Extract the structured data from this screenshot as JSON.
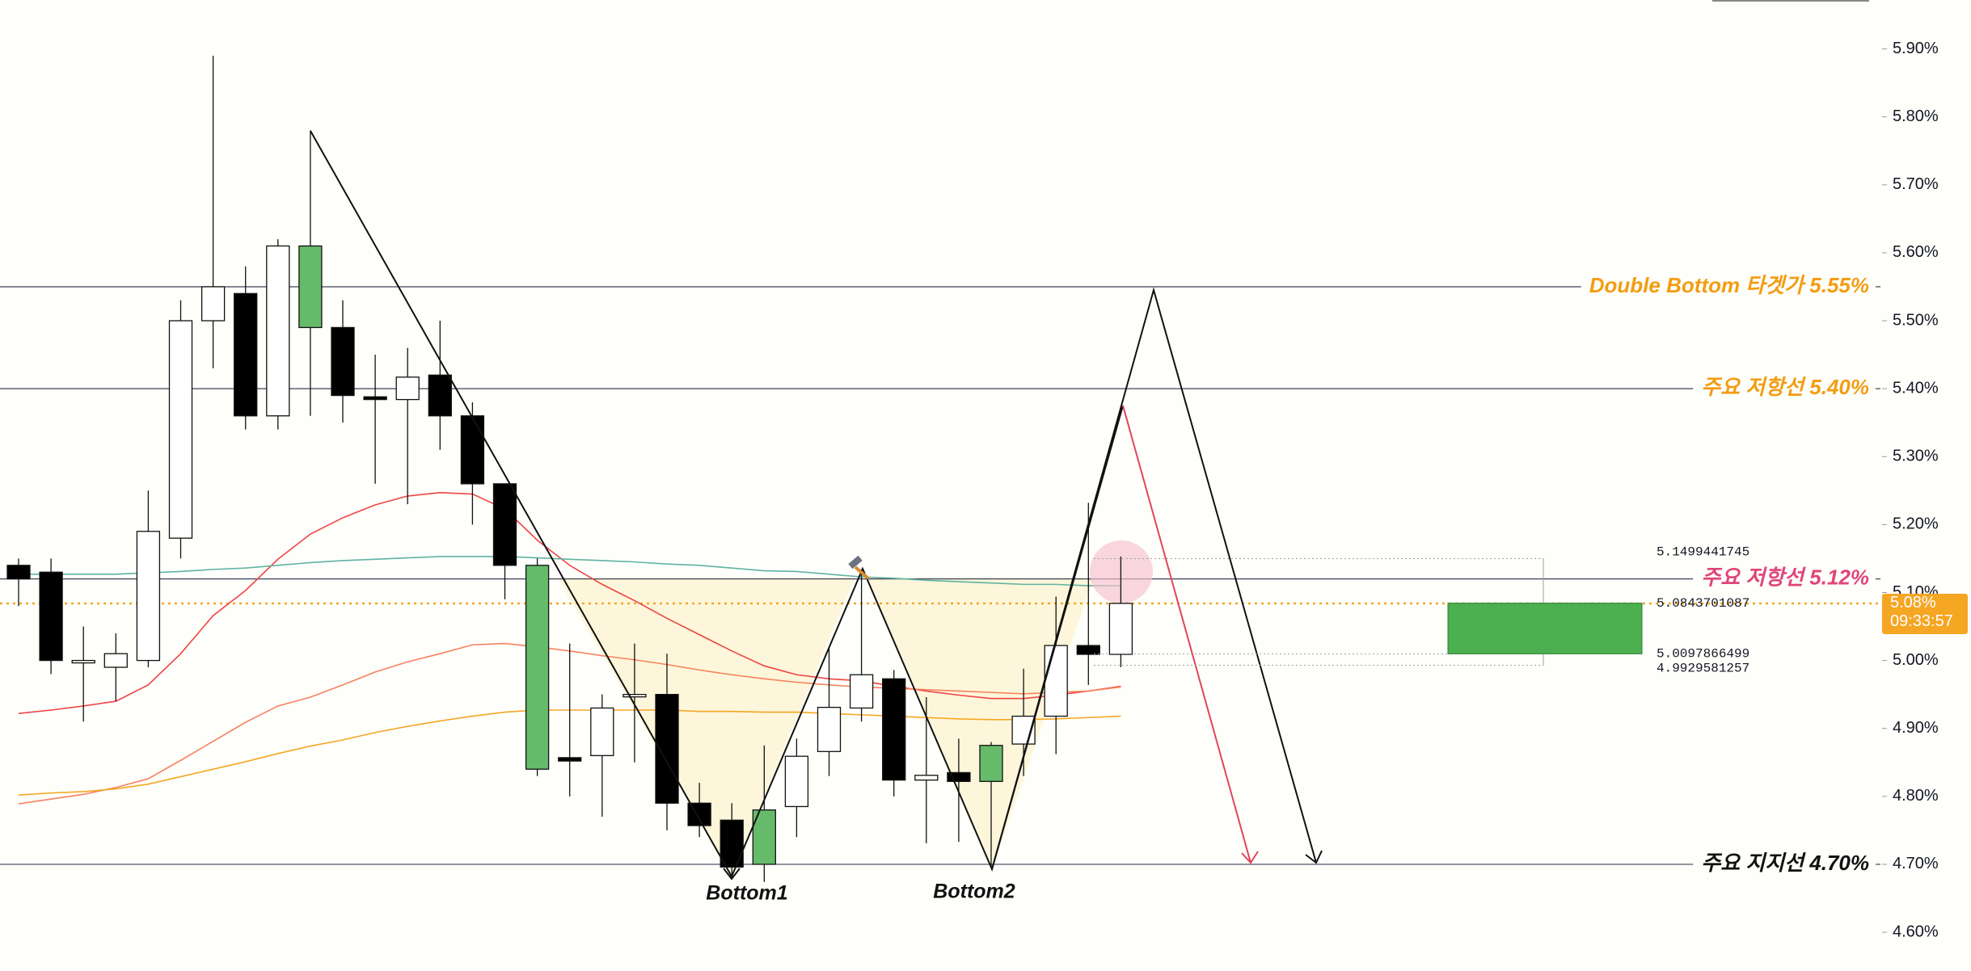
{
  "chart_data": {
    "type": "candlestick",
    "ylim": [
      4.543,
      5.972
    ],
    "yticks": [
      {
        "value": 5.9,
        "label": "5.90%"
      },
      {
        "value": 5.8,
        "label": "5.80%"
      },
      {
        "value": 5.7,
        "label": "5.70%"
      },
      {
        "value": 5.6,
        "label": "5.60%"
      },
      {
        "value": 5.5,
        "label": "5.50%"
      },
      {
        "value": 5.4,
        "label": "5.40%"
      },
      {
        "value": 5.3,
        "label": "5.30%"
      },
      {
        "value": 5.2,
        "label": "5.20%"
      },
      {
        "value": 5.1,
        "label": "5.10%"
      },
      {
        "value": 5.0,
        "label": "5.00%"
      },
      {
        "value": 4.9,
        "label": "4.90%"
      },
      {
        "value": 4.8,
        "label": "4.80%"
      },
      {
        "value": 4.7,
        "label": "4.70%"
      },
      {
        "value": 4.6,
        "label": "4.60%"
      }
    ],
    "open": [
      5.14,
      5.13,
      4.999,
      4.99,
      5.0,
      5.18,
      5.5,
      5.54,
      5.36,
      5.61,
      5.49,
      5.388,
      5.384,
      5.42,
      5.36,
      5.26,
      5.14,
      4.857,
      4.86,
      4.948,
      4.95,
      4.79,
      4.765,
      4.7,
      4.785,
      4.866,
      4.93,
      4.973,
      4.824,
      4.835,
      4.822,
      4.877,
      4.918,
      5.022,
      5.009
    ],
    "high": [
      5.15,
      5.15,
      5.05,
      5.04,
      5.25,
      5.53,
      5.89,
      5.58,
      5.62,
      5.78,
      5.53,
      5.45,
      5.46,
      5.5,
      5.38,
      5.26,
      5.15,
      5.025,
      4.95,
      5.025,
      5.01,
      4.82,
      4.79,
      4.875,
      4.885,
      5.02,
      5.134,
      4.986,
      4.946,
      4.885,
      4.88,
      4.988,
      5.094,
      5.232,
      5.153
    ],
    "low": [
      5.08,
      4.98,
      4.91,
      4.94,
      4.99,
      5.15,
      5.43,
      5.34,
      5.34,
      5.36,
      5.35,
      5.26,
      5.23,
      5.31,
      5.2,
      5.09,
      4.83,
      4.8,
      4.77,
      4.85,
      4.75,
      4.74,
      4.68,
      4.674,
      4.74,
      4.83,
      4.91,
      4.8,
      4.731,
      4.733,
      4.696,
      4.83,
      4.862,
      4.964,
      4.99
    ],
    "close": [
      5.12,
      5.0,
      5.0,
      5.01,
      5.19,
      5.5,
      5.55,
      5.36,
      5.61,
      5.49,
      5.39,
      5.384,
      5.417,
      5.36,
      5.26,
      5.14,
      4.84,
      4.852,
      4.93,
      4.95,
      4.79,
      4.757,
      4.696,
      4.78,
      4.859,
      4.931,
      4.979,
      4.824,
      4.831,
      4.822,
      4.875,
      4.918,
      5.022,
      5.009,
      5.084
    ],
    "colors": [
      "#000000",
      "#000000",
      "#ffffff",
      "#ffffff",
      "#ffffff",
      "#ffffff",
      "#ffffff",
      "#000000",
      "#ffffff",
      "#66bb6a",
      "#000000",
      "#000000",
      "#ffffff",
      "#000000",
      "#000000",
      "#000000",
      "#66bb6a",
      "#000000",
      "#ffffff",
      "#ffffff",
      "#000000",
      "#000000",
      "#000000",
      "#66bb6a",
      "#ffffff",
      "#ffffff",
      "#ffffff",
      "#000000",
      "#ffffff",
      "#000000",
      "#66bb6a",
      "#ffffff",
      "#ffffff",
      "#000000",
      "#ffffff"
    ],
    "moving_averages": [
      {
        "color": "#ef4444",
        "values": [
          4.922,
          4.927,
          4.933,
          4.94,
          4.964,
          5.01,
          5.066,
          5.103,
          5.149,
          5.186,
          5.21,
          5.229,
          5.242,
          5.247,
          5.245,
          5.223,
          5.177,
          5.14,
          5.112,
          5.088,
          5.062,
          5.038,
          5.014,
          4.992,
          4.979,
          4.973,
          4.97,
          4.962,
          4.955,
          4.949,
          4.944,
          4.944,
          4.949,
          4.955,
          4.962
        ]
      },
      {
        "color": "#5fb3a3",
        "values": [
          5.127,
          5.127,
          5.127,
          5.127,
          5.129,
          5.131,
          5.134,
          5.136,
          5.14,
          5.144,
          5.147,
          5.149,
          5.151,
          5.153,
          5.153,
          5.153,
          5.151,
          5.149,
          5.147,
          5.145,
          5.142,
          5.14,
          5.136,
          5.132,
          5.131,
          5.127,
          5.123,
          5.121,
          5.118,
          5.116,
          5.114,
          5.112,
          5.112,
          5.11,
          5.11
        ]
      },
      {
        "color": "#f7825e",
        "values": [
          4.789,
          4.796,
          4.803,
          4.813,
          4.826,
          4.853,
          4.881,
          4.909,
          4.933,
          4.946,
          4.964,
          4.983,
          4.998,
          5.01,
          5.023,
          5.025,
          5.02,
          5.014,
          5.007,
          5.001,
          4.994,
          4.986,
          4.979,
          4.973,
          4.968,
          4.964,
          4.961,
          4.959,
          4.957,
          4.955,
          4.953,
          4.951,
          4.953,
          4.955,
          4.961
        ]
      },
      {
        "color": "#f5a623",
        "values": [
          4.802,
          4.805,
          4.807,
          4.811,
          4.818,
          4.829,
          4.84,
          4.851,
          4.863,
          4.874,
          4.883,
          4.894,
          4.903,
          4.911,
          4.918,
          4.924,
          4.927,
          4.927,
          4.927,
          4.927,
          4.927,
          4.925,
          4.925,
          4.924,
          4.924,
          4.922,
          4.92,
          4.918,
          4.916,
          4.914,
          4.913,
          4.913,
          4.914,
          4.916,
          4.918
        ]
      }
    ],
    "levels": [
      {
        "value": 5.55,
        "label": "Double Bottom 타겟가 5.55%",
        "color": "#f39c12"
      },
      {
        "value": 5.4,
        "label": "주요 저항선 5.40%",
        "color": "#f39c12"
      },
      {
        "value": 5.12,
        "label": "주요 저항선 5.12%",
        "color": "#e0457b"
      },
      {
        "value": 4.7,
        "label": "주요 지지선 4.70%",
        "color": "#111111"
      }
    ],
    "current_price": {
      "value": 5.084,
      "label": "5.08%",
      "countdown": "09:33:57",
      "color": "#f5a623"
    },
    "position": {
      "values": [
        5.1499441745,
        5.0843701087,
        5.0097866499,
        4.9929581257
      ],
      "color": "#4caf50"
    },
    "annotations": [
      "Bottom1",
      "Bottom2"
    ]
  }
}
